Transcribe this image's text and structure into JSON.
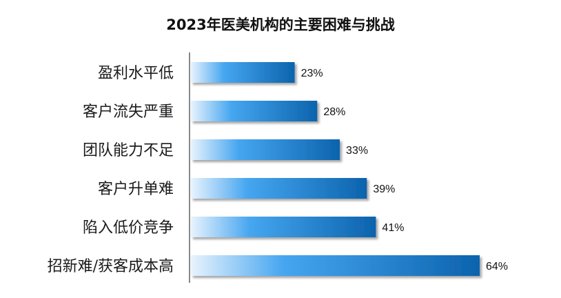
{
  "chart_data": {
    "type": "bar",
    "orientation": "horizontal",
    "title": "2023年医美机构的主要困难与挑战",
    "categories": [
      "盈利水平低",
      "客户流失严重",
      "团队能力不足",
      "客户升单难",
      "陷入低价竞争",
      "招新难/获客成本高"
    ],
    "values": [
      23,
      28,
      33,
      39,
      41,
      64
    ],
    "value_labels": [
      "23%",
      "28%",
      "33%",
      "39%",
      "41%",
      "64%"
    ],
    "unit": "%",
    "xlim": [
      0,
      64
    ],
    "grid": false,
    "legend": "none",
    "colors": {
      "bar_light": "#e8f3fd",
      "bar_mid": "#46a6f0",
      "bar_dark": "#0c63ad",
      "axis": "#888888"
    }
  }
}
